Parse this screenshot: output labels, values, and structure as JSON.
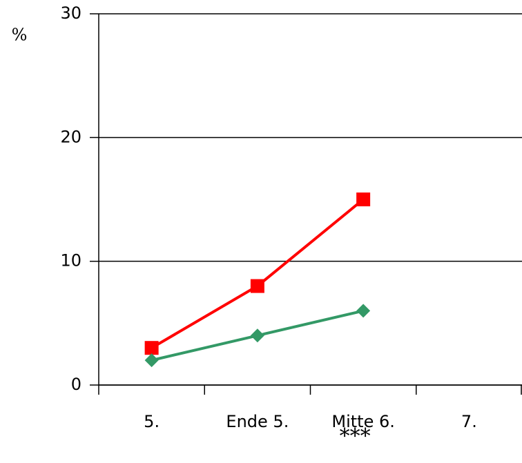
{
  "chart_data": {
    "type": "line",
    "y_label": "%",
    "annotation": "***",
    "categories": [
      "5.",
      "Ende 5.",
      "Mitte 6.",
      "7."
    ],
    "series": [
      {
        "color": "#ff0000",
        "marker": "square",
        "values": [
          3,
          8,
          15,
          null
        ]
      },
      {
        "color": "#339966",
        "marker": "diamond",
        "values": [
          2,
          4,
          6,
          null
        ]
      }
    ],
    "ylim": [
      0,
      30
    ],
    "yticks": [
      0,
      10,
      20,
      30
    ],
    "grid": true
  }
}
